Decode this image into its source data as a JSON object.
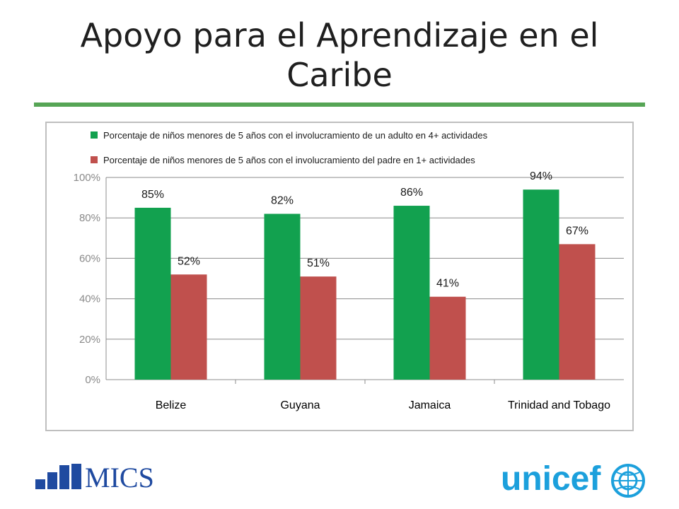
{
  "slide": {
    "title": "Apoyo para el Aprendizaje en el Caribe",
    "accent_color": "#56a555"
  },
  "logos": {
    "mics_text": "MICS",
    "mics_color": "#1f4aa0",
    "unicef_text": "unicef",
    "unicef_color": "#1ca0dc"
  },
  "chart_data": {
    "type": "bar",
    "categories": [
      "Belize",
      "Guyana",
      "Jamaica",
      "Trinidad and Tobago"
    ],
    "series": [
      {
        "name": "Porcentaje de niños menores de 5 años con el involucramiento de un adulto en 4+ actividades",
        "values": [
          85,
          82,
          86,
          94
        ],
        "labels": [
          "85%",
          "82%",
          "86%",
          "94%"
        ],
        "color": "#12a14f"
      },
      {
        "name": "Porcentaje de niños menores de 5 años con el involucramiento del padre en 1+ actividades",
        "values": [
          52,
          51,
          41,
          67
        ],
        "labels": [
          "52%",
          "51%",
          "41%",
          "67%"
        ],
        "color": "#c0504d"
      }
    ],
    "ylim": [
      0,
      100
    ],
    "yticks": [
      0,
      20,
      40,
      60,
      80,
      100
    ],
    "ytick_labels": [
      "0%",
      "20%",
      "40%",
      "60%",
      "80%",
      "100%"
    ],
    "grid": true,
    "legend_position": "top",
    "title": "",
    "xlabel": "",
    "ylabel": ""
  }
}
